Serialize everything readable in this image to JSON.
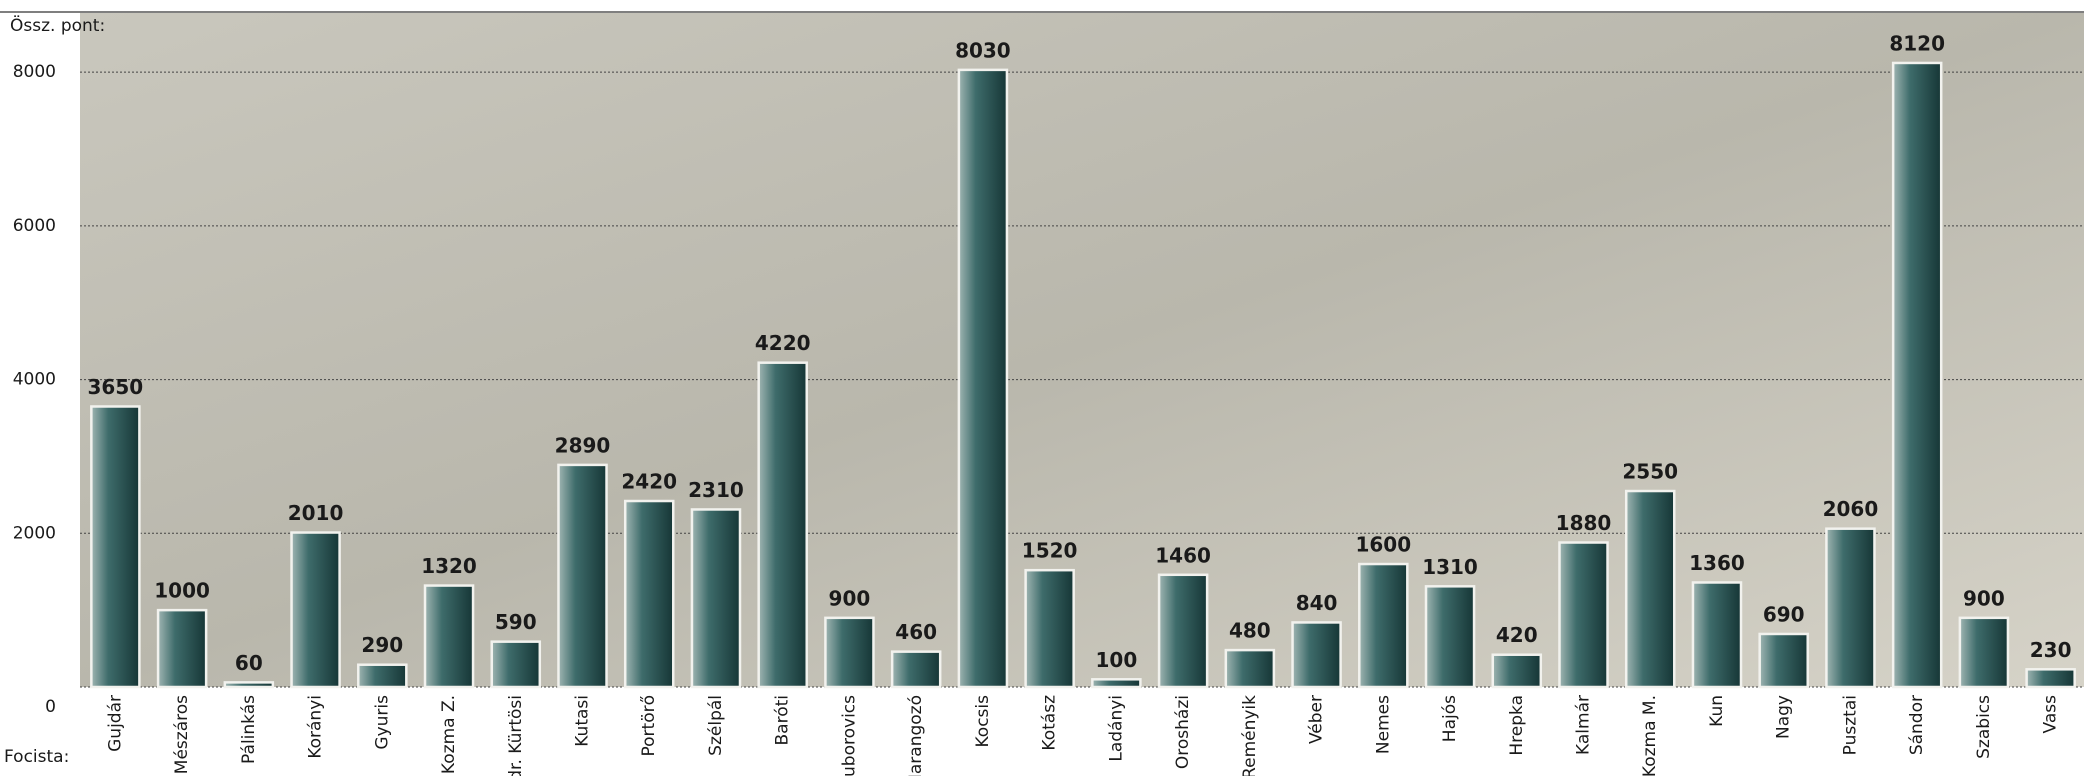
{
  "chart_data": {
    "type": "bar",
    "y_label": "Össz. pont:",
    "x_label": "Focista:",
    "categories": [
      "Gujdár",
      "Mészáros",
      "Pálinkás",
      "Korányi",
      "Gyuris",
      "Kozma Z.",
      "dr. Kürtösi",
      "Kutasi",
      "Portörő",
      "Szélpál",
      "Baróti",
      "Gruborovics",
      "Harangozó",
      "Kocsis",
      "Kotász",
      "Ladányi",
      "Orosházi",
      "Reményik",
      "Véber",
      "Nemes",
      "Hajós",
      "Hrepka",
      "Kalmár",
      "Kozma M.",
      "Kun",
      "Nagy",
      "Pusztai",
      "Sándor",
      "Szabics",
      "Vass"
    ],
    "values": [
      3650,
      1000,
      60,
      2010,
      290,
      1320,
      590,
      2890,
      2420,
      2310,
      4220,
      900,
      460,
      8030,
      1520,
      100,
      1460,
      480,
      840,
      1600,
      1310,
      420,
      1880,
      2550,
      1360,
      690,
      2060,
      8120,
      900,
      230
    ],
    "color": "#2e5a5a",
    "ylim": [
      0,
      8770
    ],
    "yticks": [
      0,
      2000,
      4000,
      6000,
      8000
    ],
    "grid": true
  }
}
